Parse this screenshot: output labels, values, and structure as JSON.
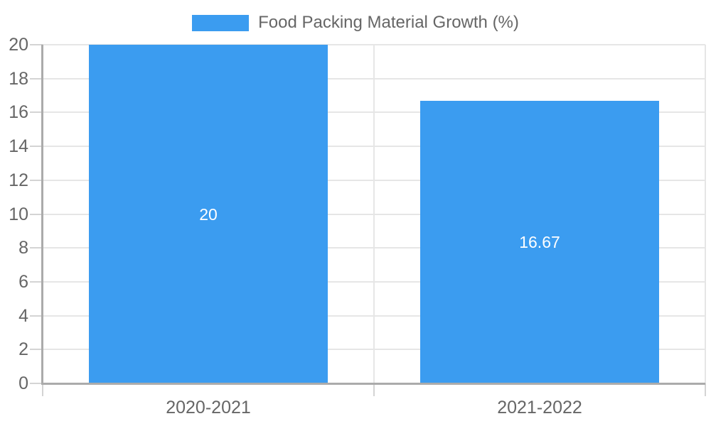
{
  "chart_data": {
    "type": "bar",
    "title": "",
    "legend": {
      "label": "Food Packing Material Growth (%)",
      "position": "top-center"
    },
    "categories": [
      "2020-2021",
      "2021-2022"
    ],
    "series": [
      {
        "name": "Food Packing Material Growth (%)",
        "values": [
          20,
          16.67
        ],
        "value_labels": [
          "20",
          "16.67"
        ]
      }
    ],
    "xlabel": "",
    "ylabel": "",
    "ylim": [
      0,
      20
    ],
    "y_ticks": [
      0,
      2,
      4,
      6,
      8,
      10,
      12,
      14,
      16,
      18,
      20
    ],
    "grid": true,
    "colors": {
      "bar": "#3B9CF0",
      "grid": "#e6e6e6",
      "axis": "#ababab",
      "tick": "#d4d4d4",
      "text": "#666666",
      "value_label": "#ffffff"
    }
  }
}
